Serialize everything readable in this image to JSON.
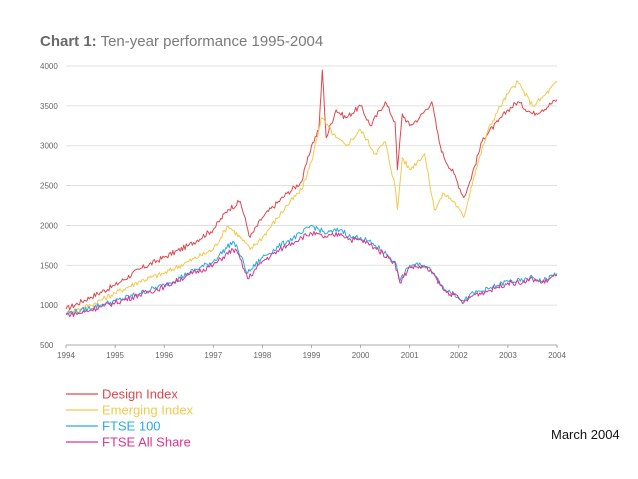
{
  "chart_data": {
    "type": "line",
    "title_prefix": "Chart 1:",
    "title_text": "Ten-year performance 1995-2004",
    "xlabel": "",
    "ylabel": "",
    "xlim": [
      1994,
      2004
    ],
    "ylim": [
      500,
      4000
    ],
    "x_ticks": [
      "1994",
      "1995",
      "1996",
      "1997",
      "1998",
      "1999",
      "2000",
      "2001",
      "2002",
      "2003",
      "2004"
    ],
    "y_ticks": [
      "500",
      "1000",
      "1500",
      "2000",
      "2500",
      "3000",
      "3500",
      "4000"
    ],
    "grid": true,
    "legend_position": "bottom-left",
    "series": [
      {
        "name": "Design Index",
        "color": "#e0474c",
        "x": [
          1994.0,
          1994.5,
          1995.0,
          1995.5,
          1996.0,
          1996.5,
          1997.0,
          1997.3,
          1997.55,
          1997.75,
          1998.0,
          1998.5,
          1998.8,
          1999.0,
          1999.15,
          1999.22,
          1999.3,
          1999.5,
          1999.7,
          2000.0,
          2000.2,
          2000.5,
          2000.7,
          2000.75,
          2000.85,
          2001.0,
          2001.2,
          2001.45,
          2001.6,
          2001.7,
          2001.9,
          2002.1,
          2002.2,
          2002.5,
          2002.8,
          2003.0,
          2003.2,
          2003.5,
          2003.7,
          2004.0
        ],
        "values": [
          950,
          1100,
          1250,
          1450,
          1600,
          1750,
          1950,
          2200,
          2300,
          1850,
          2100,
          2400,
          2550,
          3000,
          3200,
          3950,
          3100,
          3450,
          3350,
          3500,
          3250,
          3550,
          3300,
          2700,
          3400,
          3250,
          3350,
          3550,
          3050,
          2850,
          2650,
          2350,
          2500,
          3100,
          3300,
          3450,
          3550,
          3400,
          3450,
          3580
        ]
      },
      {
        "name": "Emerging Index",
        "color": "#f2c94c",
        "x": [
          1994.0,
          1994.5,
          1995.0,
          1995.5,
          1996.0,
          1996.5,
          1997.0,
          1997.3,
          1997.55,
          1997.75,
          1998.0,
          1998.5,
          1998.8,
          1999.0,
          1999.2,
          1999.5,
          1999.7,
          2000.0,
          2000.3,
          2000.5,
          2000.7,
          2000.75,
          2000.85,
          2001.0,
          2001.3,
          2001.5,
          2001.7,
          2001.9,
          2002.1,
          2002.3,
          2002.6,
          2002.8,
          2003.0,
          2003.2,
          2003.5,
          2003.7,
          2004.0
        ],
        "values": [
          900,
          1000,
          1150,
          1300,
          1400,
          1550,
          1700,
          2000,
          1850,
          1700,
          1850,
          2250,
          2450,
          2800,
          3350,
          3100,
          3000,
          3200,
          2900,
          3050,
          2500,
          2200,
          2850,
          2700,
          2900,
          2200,
          2400,
          2300,
          2100,
          2600,
          3200,
          3450,
          3650,
          3800,
          3500,
          3600,
          3800
        ]
      },
      {
        "name": "FTSE 100",
        "color": "#29abe2",
        "x": [
          1994.0,
          1994.3,
          1994.7,
          1995.0,
          1995.5,
          1996.0,
          1996.5,
          1997.0,
          1997.4,
          1997.5,
          1997.7,
          1998.0,
          1998.5,
          1998.8,
          1999.0,
          1999.3,
          1999.6,
          1999.8,
          2000.0,
          2000.3,
          2000.6,
          2000.7,
          2000.8,
          2001.0,
          2001.3,
          2001.5,
          2001.7,
          2001.9,
          2002.0,
          2002.1,
          2002.3,
          2002.6,
          2002.8,
          2003.0,
          2003.3,
          2003.5,
          2003.7,
          2004.0
        ],
        "values": [
          900,
          930,
          1000,
          1050,
          1150,
          1250,
          1400,
          1550,
          1800,
          1700,
          1400,
          1600,
          1800,
          1900,
          2000,
          1900,
          1950,
          1850,
          1850,
          1750,
          1600,
          1550,
          1300,
          1500,
          1500,
          1400,
          1200,
          1150,
          1100,
          1050,
          1150,
          1200,
          1250,
          1300,
          1300,
          1350,
          1300,
          1400
        ]
      },
      {
        "name": "FTSE All Share",
        "color": "#d9368c",
        "x": [
          1994.0,
          1994.3,
          1994.7,
          1995.0,
          1995.5,
          1996.0,
          1996.5,
          1997.0,
          1997.4,
          1997.5,
          1997.7,
          1998.0,
          1998.5,
          1998.8,
          1999.0,
          1999.3,
          1999.6,
          1999.8,
          2000.0,
          2000.3,
          2000.6,
          2000.7,
          2000.8,
          2001.0,
          2001.3,
          2001.5,
          2001.7,
          2001.9,
          2002.0,
          2002.1,
          2002.3,
          2002.6,
          2002.8,
          2003.0,
          2003.3,
          2003.5,
          2003.7,
          2004.0
        ],
        "values": [
          880,
          900,
          980,
          1030,
          1130,
          1230,
          1380,
          1500,
          1700,
          1650,
          1330,
          1550,
          1750,
          1850,
          1900,
          1850,
          1900,
          1820,
          1820,
          1720,
          1580,
          1530,
          1280,
          1480,
          1480,
          1380,
          1180,
          1130,
          1080,
          1030,
          1130,
          1180,
          1230,
          1280,
          1280,
          1330,
          1280,
          1380
        ]
      }
    ]
  },
  "footnote": "March 2004"
}
